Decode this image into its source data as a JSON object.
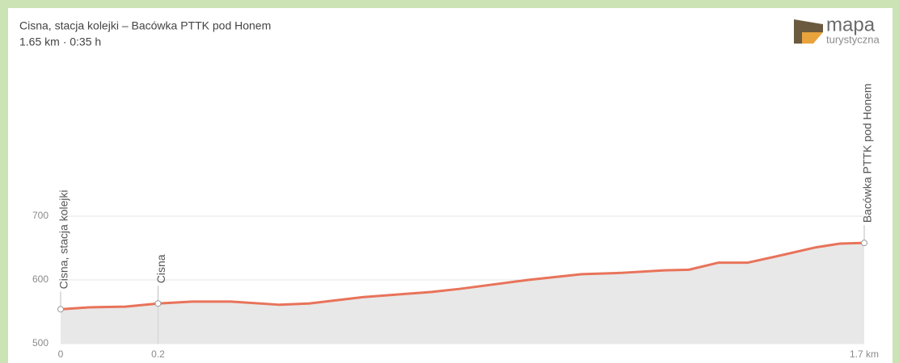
{
  "chart_data": {
    "type": "area",
    "title": "Cisna, stacja kolejki – Bacówka PTTK pod Honem",
    "subtitle": "1.65 km · 0:35 h",
    "x": [
      0,
      0.058,
      0.133,
      0.2,
      0.27,
      0.35,
      0.45,
      0.51,
      0.62,
      0.76,
      0.82,
      0.96,
      1.07,
      1.15,
      1.24,
      1.29,
      1.35,
      1.41,
      1.47,
      1.55,
      1.6,
      1.65
    ],
    "series": [
      {
        "color": "#e8735a",
        "values": [
          554,
          557,
          558,
          563,
          566,
          566,
          561,
          563,
          573,
          581,
          586,
          600,
          609,
          611,
          615,
          616,
          627,
          627,
          637,
          651,
          657,
          658
        ]
      }
    ],
    "fill": "#e8e8e8",
    "xlim": [
      0,
      1.65
    ],
    "xticks": [
      0,
      0.2,
      {
        "value": 1.65,
        "label": "1.7 km"
      }
    ],
    "ylim": [
      500,
      900
    ],
    "yticks": [
      500,
      600,
      700
    ],
    "grid": true,
    "waypoints": [
      {
        "name": "Cisna, stacja kolejki",
        "x": 0,
        "elevation": 554
      },
      {
        "name": "Cisna",
        "x": 0.2,
        "elevation": 563
      },
      {
        "name": "Bacówka PTTK pod Honem",
        "x": 1.65,
        "elevation": 658
      }
    ]
  },
  "logo": {
    "name": "mapa",
    "tagline": "turystyczna"
  }
}
